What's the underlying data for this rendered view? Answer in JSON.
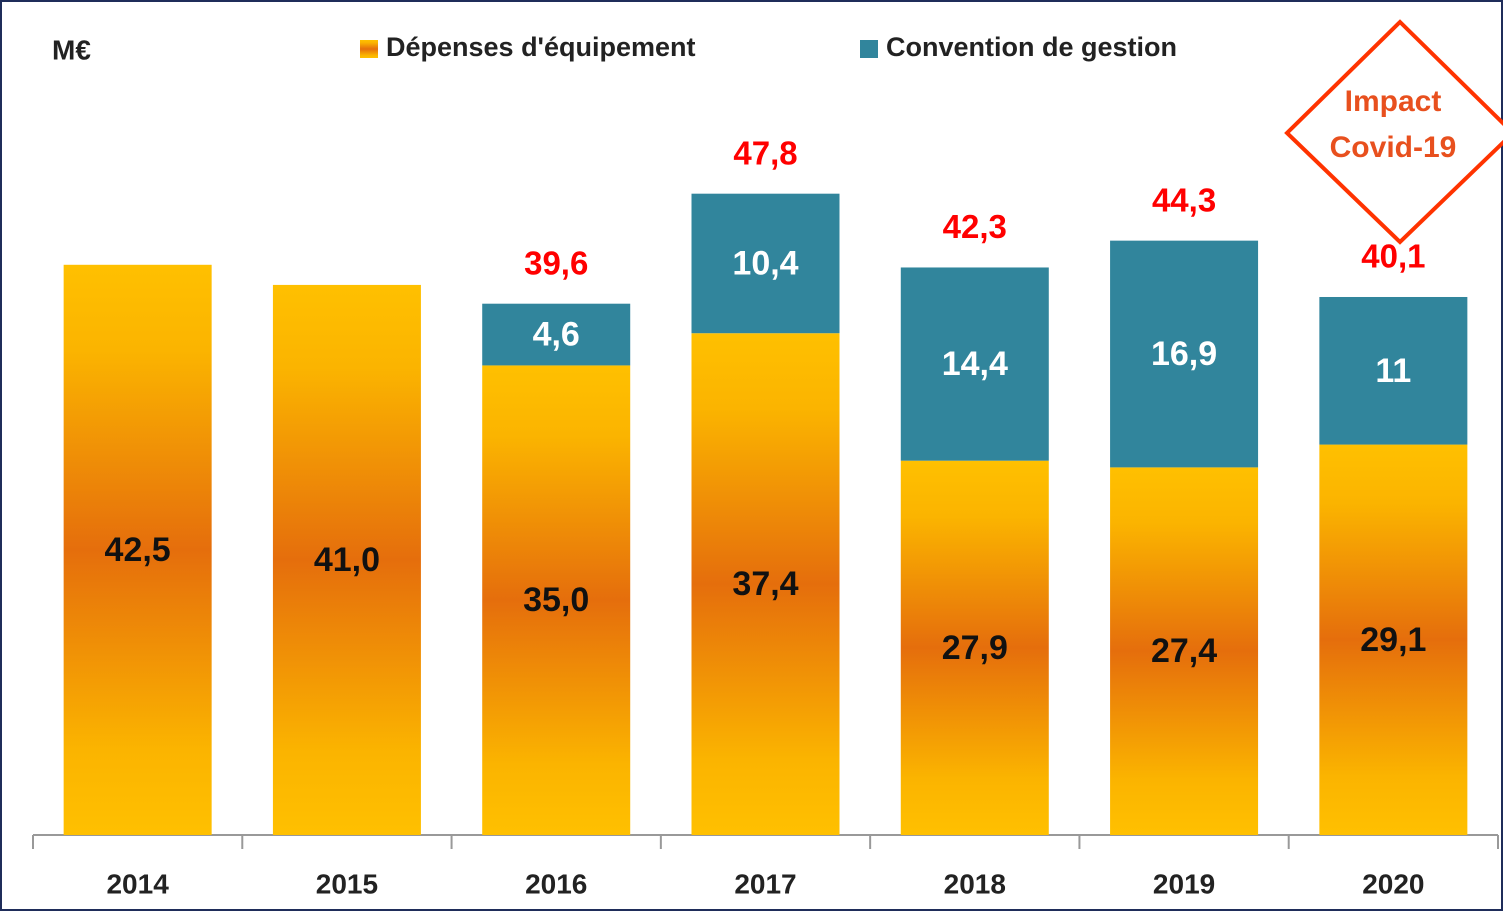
{
  "chart_data": {
    "type": "stacked_bar",
    "unit_label": "M€",
    "annotation": [
      "Impact",
      "Covid-19"
    ],
    "categories": [
      "2014",
      "2015",
      "2016",
      "2017",
      "2018",
      "2019",
      "2020"
    ],
    "series": [
      {
        "name": "Dépenses d'équipement",
        "color": "#ffc000",
        "values": [
          42.5,
          41.0,
          35.0,
          37.4,
          27.9,
          27.4,
          29.1
        ],
        "value_labels": [
          "42,5",
          "41,0",
          "35,0",
          "37,4",
          "27,9",
          "27,4",
          "29,1"
        ]
      },
      {
        "name": "Convention de gestion",
        "color": "#31859c",
        "values": [
          null,
          null,
          4.6,
          10.4,
          14.4,
          16.9,
          11
        ],
        "value_labels": [
          null,
          null,
          "4,6",
          "10,4",
          "14,4",
          "16,9",
          "11"
        ]
      }
    ],
    "totals": [
      null,
      null,
      39.6,
      47.8,
      42.3,
      44.3,
      40.1
    ],
    "total_labels": [
      null,
      null,
      "39,6",
      "47,8",
      "42,3",
      "44,3",
      "40,1"
    ],
    "ylim": [
      0,
      60
    ],
    "legend": "top"
  }
}
